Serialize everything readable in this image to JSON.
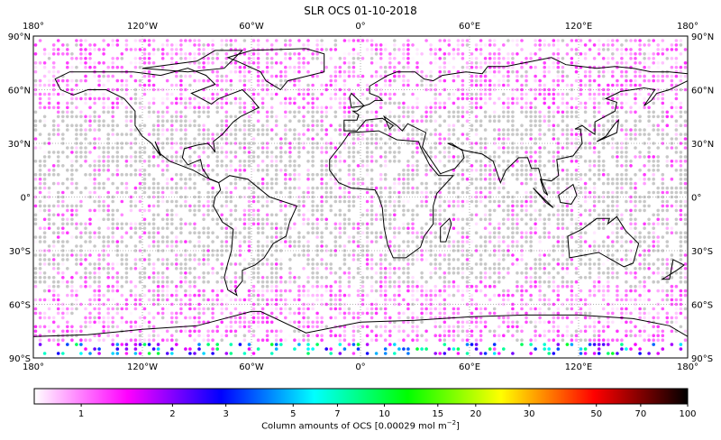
{
  "title": "SLR OCS 01-10-2018",
  "map": {
    "lon_ticks": [
      {
        "value": -180,
        "label": "180°"
      },
      {
        "value": -120,
        "label": "120°W"
      },
      {
        "value": -60,
        "label": "60°W"
      },
      {
        "value": 0,
        "label": "0°"
      },
      {
        "value": 60,
        "label": "60°E"
      },
      {
        "value": 120,
        "label": "120°E"
      },
      {
        "value": 180,
        "label": "180°"
      }
    ],
    "lat_ticks": [
      {
        "value": 90,
        "label": "90°N"
      },
      {
        "value": 60,
        "label": "60°N"
      },
      {
        "value": 30,
        "label": "30°N"
      },
      {
        "value": 0,
        "label": "0°"
      },
      {
        "value": -30,
        "label": "30°S"
      },
      {
        "value": -60,
        "label": "60°S"
      },
      {
        "value": -90,
        "label": "90°S"
      }
    ],
    "no_data_color": "#c8c8c8",
    "coastline_color": "#000000",
    "gridlines": true
  },
  "colorbar": {
    "scale": "log",
    "range": [
      0.7,
      100
    ],
    "ticks": [
      {
        "value": 1,
        "label": "1"
      },
      {
        "value": 2,
        "label": "2"
      },
      {
        "value": 3,
        "label": "3"
      },
      {
        "value": 5,
        "label": "5"
      },
      {
        "value": 7,
        "label": "7"
      },
      {
        "value": 10,
        "label": "10"
      },
      {
        "value": 15,
        "label": "15"
      },
      {
        "value": 20,
        "label": "20"
      },
      {
        "value": 30,
        "label": "30"
      },
      {
        "value": 50,
        "label": "50"
      },
      {
        "value": 70,
        "label": "70"
      },
      {
        "value": 100,
        "label": "100"
      }
    ],
    "colors": [
      "#ffffff",
      "#ff00ff",
      "#0000ff",
      "#00ffff",
      "#00ff00",
      "#ffff00",
      "#ff0000",
      "#000000"
    ],
    "label": "Column amounts of OCS [0.00029 mol m",
    "label_exp": "−2",
    "label_end": "]"
  }
}
